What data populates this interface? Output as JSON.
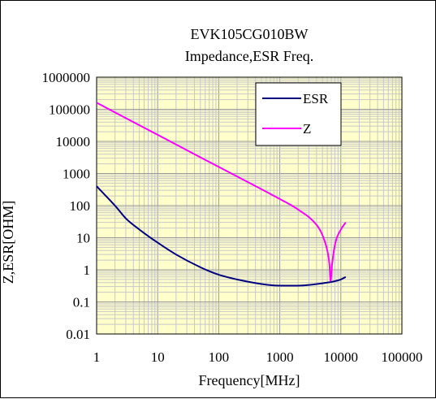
{
  "chart_data": {
    "type": "line",
    "title": "EVK105CG010BW",
    "subtitle": "Impedance,ESR Freq.",
    "xlabel": "Frequency[MHz]",
    "ylabel": "Z,ESR[OHM]",
    "x_scale": "log",
    "y_scale": "log",
    "xlim": [
      1,
      100000
    ],
    "ylim": [
      0.01,
      1000000
    ],
    "x_ticks": [
      "1",
      "10",
      "100",
      "1000",
      "10000",
      "100000"
    ],
    "y_ticks": [
      "1000000",
      "100000",
      "10000",
      "1000",
      "100",
      "10",
      "1",
      "0.1",
      "0.01"
    ],
    "grid": true,
    "legend_position": "top-right",
    "series": [
      {
        "name": "ESR",
        "color": "#000080",
        "x": [
          1,
          2,
          3,
          5,
          10,
          20,
          50,
          100,
          200,
          500,
          1000,
          2000,
          5000,
          7000,
          10000,
          12000
        ],
        "y": [
          400,
          100,
          40,
          18,
          7,
          3,
          1.2,
          0.7,
          0.5,
          0.36,
          0.32,
          0.32,
          0.38,
          0.42,
          0.5,
          0.6
        ]
      },
      {
        "name": "Z",
        "color": "#ff00ff",
        "x": [
          1,
          10,
          100,
          1000,
          2000,
          4000,
          5000,
          6000,
          6500,
          6800,
          7200,
          8000,
          10000,
          12000
        ],
        "y": [
          160000,
          16000,
          1600,
          160,
          75,
          25,
          12,
          4,
          1.5,
          0.45,
          1.5,
          6,
          18,
          30
        ]
      }
    ]
  }
}
